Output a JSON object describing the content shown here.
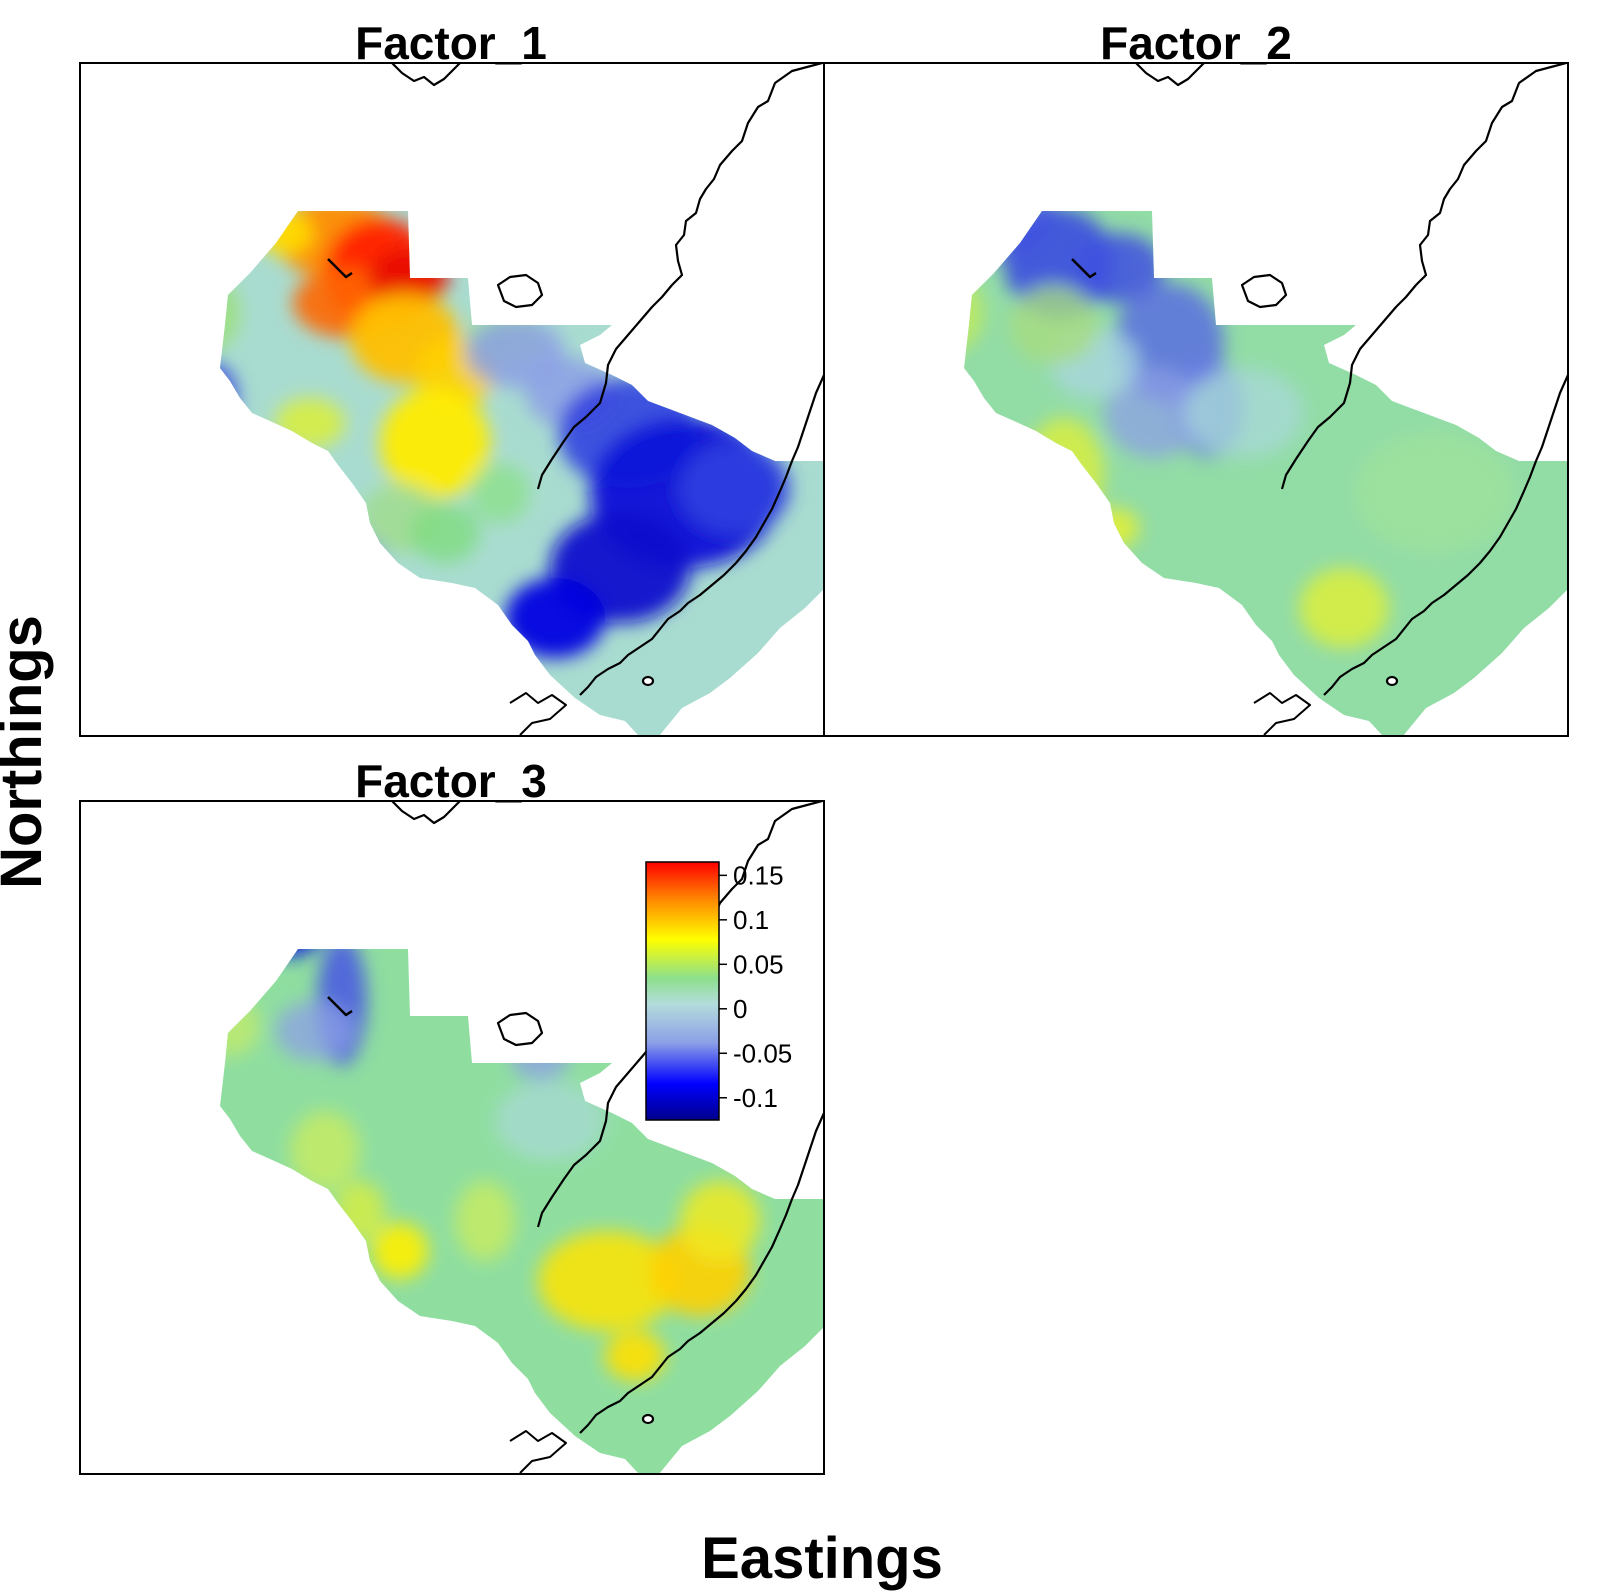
{
  "panels": [
    {
      "title": "Factor_1",
      "pattern": "factor1"
    },
    {
      "title": "Factor_2",
      "pattern": "factor2"
    },
    {
      "title": "Factor_3",
      "pattern": "factor3"
    }
  ],
  "x_label": "Eastings",
  "y_label": "Northings",
  "legend": {
    "min": -0.125,
    "max": 0.165,
    "ticks": [
      {
        "value": 0.15,
        "label": "0.15"
      },
      {
        "value": 0.1,
        "label": "0.1"
      },
      {
        "value": 0.05,
        "label": "0.05"
      },
      {
        "value": 0,
        "label": "0"
      },
      {
        "value": -0.05,
        "label": "-0.05"
      },
      {
        "value": -0.1,
        "label": "-0.1"
      }
    ],
    "colors": [
      "#00008B",
      "#0000FF",
      "#8CA0E6",
      "#B4DCDC",
      "#8CE08C",
      "#FFFF00",
      "#FF8C00",
      "#FF0000"
    ]
  },
  "colors": {
    "coastline": "#000000",
    "frame": "#000000"
  }
}
